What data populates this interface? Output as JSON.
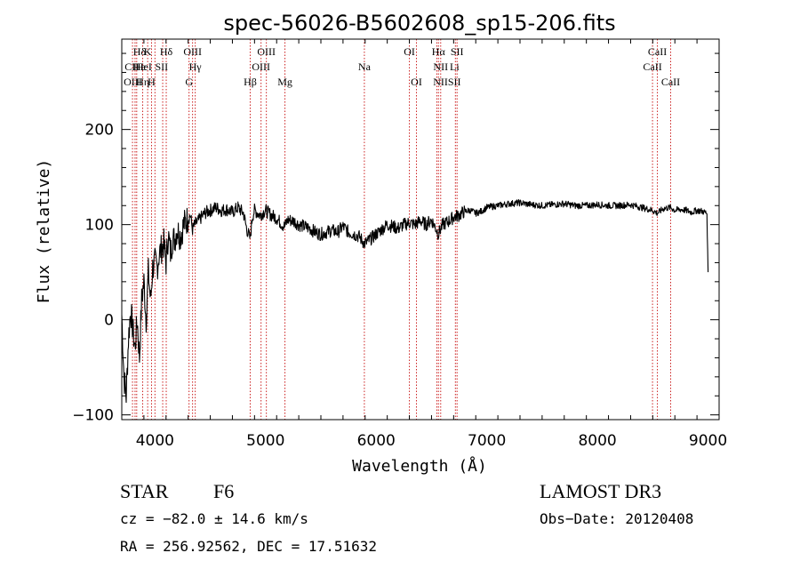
{
  "chart_data": {
    "type": "line",
    "title": "spec-56026-B5602608_sp15-206.fits",
    "xlabel": "Wavelength (Å)",
    "ylabel": "Flux (relative)",
    "xlim": [
      3700,
      9100
    ],
    "ylim": [
      -105,
      295
    ],
    "x_ticks": [
      4000,
      5000,
      6000,
      7000,
      8000,
      9000
    ],
    "y_ticks": [
      -100,
      0,
      100,
      200
    ],
    "x_tick_labels": [
      "4000",
      "5000",
      "6000",
      "7000",
      "8000",
      "9000"
    ],
    "y_tick_labels": [
      "−100",
      "0",
      "100",
      "200"
    ],
    "series": [
      {
        "name": "flux",
        "x": [
          3700,
          3720,
          3740,
          3760,
          3780,
          3800,
          3820,
          3840,
          3860,
          3880,
          3900,
          3920,
          3940,
          3960,
          3980,
          4000,
          4020,
          4040,
          4060,
          4080,
          4100,
          4120,
          4140,
          4160,
          4180,
          4200,
          4230,
          4260,
          4290,
          4320,
          4340,
          4360,
          4400,
          4450,
          4500,
          4550,
          4600,
          4650,
          4700,
          4750,
          4800,
          4830,
          4861,
          4880,
          4900,
          4950,
          5000,
          5050,
          5100,
          5150,
          5172,
          5200,
          5250,
          5300,
          5350,
          5400,
          5450,
          5500,
          5550,
          5600,
          5650,
          5700,
          5750,
          5800,
          5850,
          5893,
          5920,
          5950,
          6000,
          6050,
          6100,
          6150,
          6200,
          6250,
          6300,
          6350,
          6400,
          6450,
          6500,
          6540,
          6563,
          6580,
          6600,
          6650,
          6700,
          6750,
          6800,
          6850,
          6900,
          6950,
          7000,
          7100,
          7200,
          7300,
          7400,
          7500,
          7600,
          7700,
          7800,
          7900,
          8000,
          8100,
          8200,
          8300,
          8400,
          8498,
          8542,
          8600,
          8662,
          8700,
          8750,
          8800,
          8850,
          8900,
          8950,
          8990,
          9000
        ],
        "y": [
          5,
          -60,
          -80,
          -20,
          10,
          -10,
          -30,
          0,
          -40,
          20,
          40,
          0,
          50,
          20,
          55,
          60,
          55,
          70,
          75,
          80,
          60,
          90,
          70,
          85,
          85,
          95,
          88,
          100,
          105,
          110,
          95,
          100,
          105,
          112,
          115,
          118,
          115,
          116,
          113,
          118,
          112,
          95,
          85,
          108,
          115,
          110,
          115,
          110,
          107,
          100,
          98,
          105,
          104,
          100,
          98,
          96,
          92,
          90,
          92,
          94,
          92,
          98,
          92,
          90,
          87,
          80,
          82,
          85,
          90,
          95,
          100,
          98,
          96,
          100,
          102,
          100,
          104,
          100,
          105,
          96,
          90,
          95,
          100,
          103,
          108,
          110,
          114,
          115,
          112,
          114,
          118,
          120,
          122,
          123,
          121,
          120,
          121,
          122,
          120,
          120,
          121,
          120,
          120,
          121,
          118,
          115,
          112,
          117,
          118,
          115,
          116,
          115,
          113,
          115,
          114,
          112,
          50
        ]
      }
    ],
    "line_marks": [
      {
        "name": "Hε",
        "x": 3797
      },
      {
        "name": "Ca II",
        "x": 3820
      },
      {
        "name": "CH",
        "x": 3835
      },
      {
        "name": "K",
        "x": 3889
      },
      {
        "name": "He I",
        "x": 3934
      },
      {
        "name": "H",
        "x": 3969
      },
      {
        "name": "Hη",
        "x": 4000
      },
      {
        "name": "Hδ",
        "x": 4102
      },
      {
        "name": "S II",
        "x": 4070
      },
      {
        "name": "O III",
        "x": 4340
      },
      {
        "name": "Hγ",
        "x": 4364
      },
      {
        "name": "G",
        "x": 4308
      },
      {
        "name": "Hβ",
        "x": 4861
      },
      {
        "name": "O III",
        "x": 4959
      },
      {
        "name": "O III",
        "x": 5007
      },
      {
        "name": "Mg",
        "x": 5175
      },
      {
        "name": "Na",
        "x": 5893
      },
      {
        "name": "O I",
        "x": 6300
      },
      {
        "name": "O I",
        "x": 6364
      },
      {
        "name": "N II",
        "x": 6548
      },
      {
        "name": "Hα",
        "x": 6563
      },
      {
        "name": "N II",
        "x": 6583
      },
      {
        "name": "S II",
        "x": 6716
      },
      {
        "name": "S II",
        "x": 6731
      },
      {
        "name": "Ca II",
        "x": 8498
      },
      {
        "name": "Ca II",
        "x": 8542
      },
      {
        "name": "Ca II",
        "x": 8662
      }
    ],
    "line_labels": [
      {
        "text": "Hδ",
        "x": 3860,
        "row": 1
      },
      {
        "text": "K",
        "x": 3934,
        "row": 1
      },
      {
        "text": "Hδ",
        "x": 4102,
        "row": 1
      },
      {
        "text": "OIII",
        "x": 4340,
        "row": 1
      },
      {
        "text": "OIII",
        "x": 5007,
        "row": 1
      },
      {
        "text": "OI",
        "x": 6300,
        "row": 1
      },
      {
        "text": "Hα",
        "x": 6563,
        "row": 1
      },
      {
        "text": "SII",
        "x": 6731,
        "row": 1
      },
      {
        "text": "CaII",
        "x": 8542,
        "row": 1
      },
      {
        "text": "CII",
        "x": 3790,
        "row": 2
      },
      {
        "text": "He",
        "x": 3860,
        "row": 2
      },
      {
        "text": "HeI",
        "x": 3900,
        "row": 2
      },
      {
        "text": "SII",
        "x": 4060,
        "row": 2
      },
      {
        "text": "Hγ",
        "x": 4364,
        "row": 2
      },
      {
        "text": "OIII",
        "x": 4959,
        "row": 2
      },
      {
        "text": "Na",
        "x": 5893,
        "row": 2
      },
      {
        "text": "NII",
        "x": 6583,
        "row": 2
      },
      {
        "text": "Li",
        "x": 6708,
        "row": 2
      },
      {
        "text": "CaII",
        "x": 8498,
        "row": 2
      },
      {
        "text": "OIII",
        "x": 3800,
        "row": 3
      },
      {
        "text": "Hη",
        "x": 3890,
        "row": 3
      },
      {
        "text": "H",
        "x": 3969,
        "row": 3
      },
      {
        "text": "G",
        "x": 4308,
        "row": 3
      },
      {
        "text": "Hβ",
        "x": 4861,
        "row": 3
      },
      {
        "text": "Mg",
        "x": 5175,
        "row": 3
      },
      {
        "text": "OI",
        "x": 6364,
        "row": 3
      },
      {
        "text": "NIISII",
        "x": 6640,
        "row": 3
      },
      {
        "text": "CaII",
        "x": 8662,
        "row": 3
      }
    ]
  },
  "info": {
    "object_class": "STAR",
    "subclass": "F6",
    "survey": "LAMOST DR3",
    "cz": "cz = −82.0 ± 14.6 km/s",
    "obs_date": "Obs−Date: 20120408",
    "coords": "RA = 256.92562, DEC =  17.51632"
  }
}
